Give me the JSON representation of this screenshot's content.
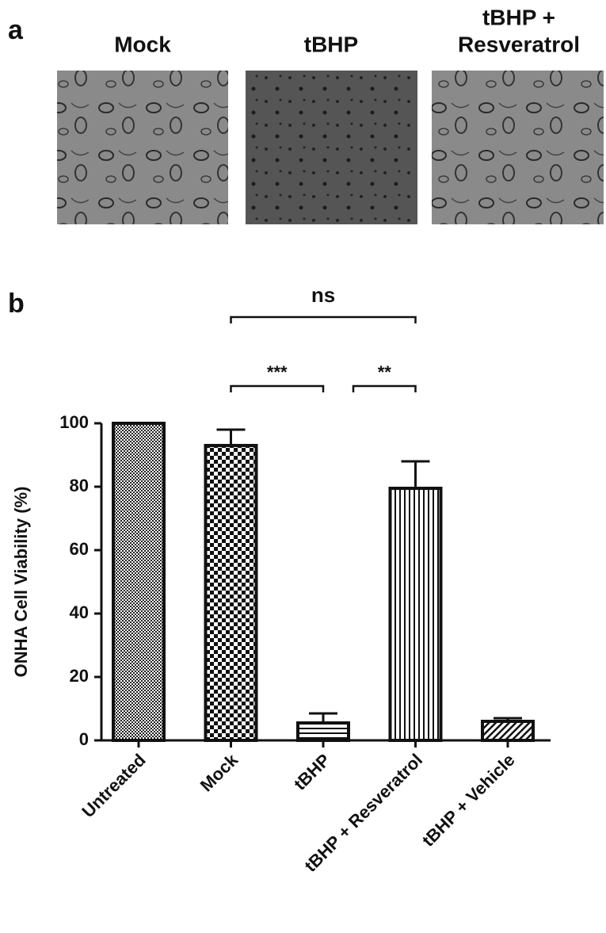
{
  "panel_a": {
    "panel_label": "a",
    "images": [
      {
        "title": [
          "Mock"
        ]
      },
      {
        "title": [
          "tBHP"
        ]
      },
      {
        "title": [
          "tBHP +",
          "Resveratrol"
        ]
      }
    ]
  },
  "chart_data": {
    "type": "bar",
    "panel_label": "b",
    "y_label": "ONHA Cell Viability (%)",
    "categories": [
      "Untreated",
      "Mock",
      "tBHP",
      "tBHP + Resveratrol",
      "tBHP + Vehicle"
    ],
    "values": [
      100,
      93,
      5.5,
      79.5,
      6
    ],
    "errors": [
      0,
      5,
      3,
      8.5,
      1
    ],
    "ylim": [
      0,
      100
    ],
    "yticks": [
      0,
      20,
      40,
      60,
      80,
      100
    ],
    "annotations": [
      {
        "text": "ns",
        "from": "Mock",
        "to": "tBHP + Resveratrol"
      },
      {
        "text": "***",
        "from": "Mock",
        "to": "tBHP"
      },
      {
        "text": "**",
        "from": "tBHP",
        "to": "tBHP + Resveratrol"
      }
    ]
  }
}
